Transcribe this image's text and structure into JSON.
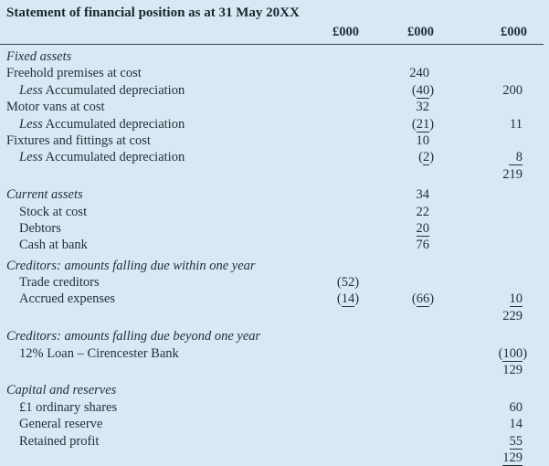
{
  "title": "Statement of financial position as at 31 May 20XX",
  "columns": [
    "£000",
    "£000",
    "£000"
  ],
  "colors": {
    "background": "#d9e9f3",
    "text": "#22303a",
    "rule": "#36454f"
  },
  "rows": [
    {
      "label": "Fixed assets",
      "section": true
    },
    {
      "label": "Freehold premises at cost",
      "c2": {
        "v": "240"
      }
    },
    {
      "prefix": "Less",
      "label": "Accumulated depreciation",
      "indent": true,
      "c2": {
        "v": "(40)",
        "u": true
      },
      "c3": {
        "v": "200"
      }
    },
    {
      "label": "Motor vans at cost",
      "c2": {
        "v": "32"
      }
    },
    {
      "prefix": "Less",
      "label": "Accumulated depreciation",
      "indent": true,
      "c2": {
        "v": "(21)",
        "u": true
      },
      "c3": {
        "v": "11"
      }
    },
    {
      "label": "Fixtures and fittings at cost",
      "c2": {
        "v": "10"
      }
    },
    {
      "prefix": "Less",
      "label": "Accumulated depreciation",
      "indent": true,
      "c2": {
        "v": "(2)",
        "u": true
      },
      "c3": {
        "v": "8",
        "u": true,
        "wide": true
      }
    },
    {
      "label": "",
      "c3": {
        "v": "219"
      }
    },
    {
      "label": "Current assets",
      "section": true,
      "gap": true,
      "c2": {
        "v": "34"
      }
    },
    {
      "label": "Stock at cost",
      "indent": true,
      "c2": {
        "v": "22"
      }
    },
    {
      "label": "Debtors",
      "indent": true,
      "c2": {
        "v": "20",
        "u": true
      }
    },
    {
      "label": "Cash at bank",
      "indent": true,
      "c2": {
        "v": "76"
      }
    },
    {
      "label": "Creditors: amounts falling due within one year",
      "section": true,
      "gap": true
    },
    {
      "label": "Trade creditors",
      "indent": true,
      "c1": {
        "v": "(52)"
      }
    },
    {
      "label": "Accrued expenses",
      "indent": true,
      "c1": {
        "v": "(14)",
        "u": true
      },
      "c2": {
        "v": "(66)",
        "u": true
      },
      "c3": {
        "v": "10",
        "u": true
      }
    },
    {
      "label": "",
      "c3": {
        "v": "229"
      }
    },
    {
      "label": "Creditors: amounts falling due beyond one year",
      "section": true,
      "gap": true
    },
    {
      "label": "12% Loan – Cirencester Bank",
      "indent": true,
      "c3": {
        "v": "(100)",
        "u": true
      }
    },
    {
      "label": "",
      "c3": {
        "v": "129"
      }
    },
    {
      "label": "Capital and reserves",
      "section": true,
      "gap": true
    },
    {
      "label": "£1 ordinary shares",
      "indent": true,
      "c3": {
        "v": "60"
      }
    },
    {
      "label": "General reserve",
      "indent": true,
      "c3": {
        "v": "14"
      }
    },
    {
      "label": "Retained profit",
      "indent": true,
      "c3": {
        "v": "55",
        "u": true
      }
    },
    {
      "label": "",
      "c3": {
        "v": "129",
        "u": true
      }
    }
  ]
}
